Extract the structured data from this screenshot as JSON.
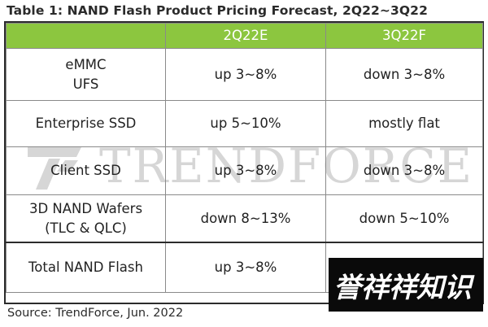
{
  "title": "Table 1: NAND Flash Product Pricing Forecast, 2Q22~3Q22",
  "header": {
    "col1": "",
    "col2": "2Q22E",
    "col3": "3Q22F"
  },
  "rows": [
    {
      "product_line1": "eMMC",
      "product_line2": "UFS",
      "q2": "up 3~8%",
      "q3": "down 3~8%"
    },
    {
      "product_line1": "Enterprise SSD",
      "product_line2": "",
      "q2": "up 5~10%",
      "q3": "mostly flat"
    },
    {
      "product_line1": "Client SSD",
      "product_line2": "",
      "q2": "up 3~8%",
      "q3": "down 3~8%"
    },
    {
      "product_line1": "3D NAND Wafers",
      "product_line2": "(TLC & QLC)",
      "q2": "down 8~13%",
      "q3": "down 5~10%"
    },
    {
      "product_line1": "Total NAND Flash",
      "product_line2": "",
      "q2": "up 3~8%",
      "q3": ""
    }
  ],
  "source": "Source: TrendForce, Jun. 2022",
  "watermark": "TRENDFORCE",
  "logo_text": "誉祥祥知识",
  "colors": {
    "header_bg": "#8cc63f",
    "header_text": "#ffffff",
    "logo_bg": "#0a0a0a"
  }
}
